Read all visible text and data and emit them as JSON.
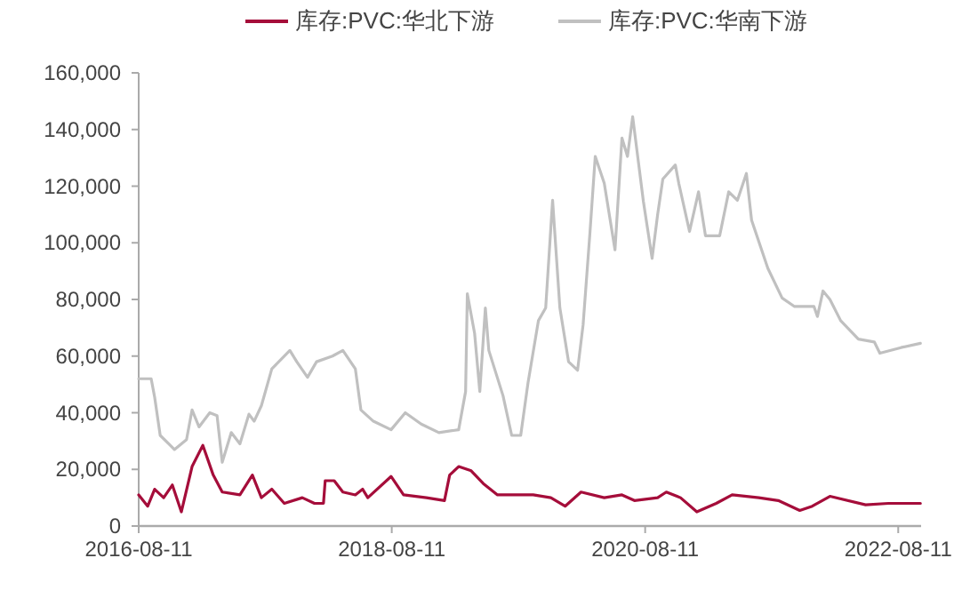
{
  "chart_data": {
    "type": "line",
    "legend": "top",
    "grid": false,
    "marker": "none",
    "line_style": "solid",
    "xlim": [
      "2016-08-11",
      "2022-10-16"
    ],
    "xticks": [
      "2016-08-11",
      "2018-08-11",
      "2020-08-11",
      "2022-08-11"
    ],
    "ylim": [
      0,
      160000
    ],
    "yticks": [
      0,
      {
        "value": 20000,
        "label": "20,000"
      },
      {
        "value": 40000,
        "label": "40,000"
      },
      {
        "value": 60000,
        "label": "60,000"
      },
      {
        "value": 80000,
        "label": "80,000"
      },
      {
        "value": 100000,
        "label": "100,000"
      },
      {
        "value": 120000,
        "label": "120,000"
      },
      {
        "value": 140000,
        "label": "140,000"
      },
      {
        "value": 160000,
        "label": "160,000"
      }
    ],
    "series": [
      {
        "name": "库存:PVC:华北下游",
        "color": "#a50d3a",
        "x": [
          "2016-08-11",
          "2016-09-06",
          "2016-09-26",
          "2016-10-22",
          "2016-11-16",
          "2016-12-12",
          "2017-01-12",
          "2017-02-12",
          "2017-03-14",
          "2017-04-09",
          "2017-05-30",
          "2017-07-05",
          "2017-07-31",
          "2017-08-30",
          "2017-10-05",
          "2017-11-26",
          "2017-12-31",
          "2018-01-26",
          "2018-01-31",
          "2018-02-26",
          "2018-03-23",
          "2018-04-28",
          "2018-05-19",
          "2018-06-03",
          "2018-08-09",
          "2018-09-14",
          "2018-11-19",
          "2019-01-10",
          "2019-01-25",
          "2019-02-20",
          "2019-03-28",
          "2019-05-02",
          "2019-06-12",
          "2019-08-03",
          "2019-09-23",
          "2019-11-13",
          "2019-12-24",
          "2020-02-08",
          "2020-04-15",
          "2020-06-05",
          "2020-07-11",
          "2020-09-16",
          "2020-10-11",
          "2020-11-21",
          "2021-01-07",
          "2021-03-04",
          "2021-04-19",
          "2021-07-05",
          "2021-08-30",
          "2021-10-31",
          "2021-12-06",
          "2022-01-26",
          "2022-05-09",
          "2022-07-14",
          "2022-10-14"
        ],
        "values": [
          11000,
          7000,
          13000,
          10000,
          14500,
          5000,
          21000,
          28500,
          18000,
          12000,
          11000,
          18000,
          10000,
          13000,
          8000,
          10000,
          8000,
          8000,
          16000,
          16000,
          12000,
          11000,
          13000,
          10000,
          17500,
          11000,
          10000,
          9000,
          18000,
          21000,
          19500,
          15000,
          11000,
          11000,
          11000,
          10000,
          7000,
          12000,
          10000,
          11000,
          9000,
          10000,
          12000,
          10000,
          5000,
          8000,
          11000,
          10000,
          9000,
          5500,
          7000,
          10500,
          7500,
          8000,
          8000
        ]
      },
      {
        "name": "库存:PVC:华南下游",
        "color": "#c0c0c0",
        "x": [
          "2016-08-11",
          "2016-09-16",
          "2016-09-26",
          "2016-10-12",
          "2016-11-06",
          "2016-11-22",
          "2016-12-27",
          "2017-01-12",
          "2017-02-01",
          "2017-03-04",
          "2017-03-25",
          "2017-04-09",
          "2017-05-05",
          "2017-05-30",
          "2017-06-25",
          "2017-07-10",
          "2017-07-31",
          "2017-08-30",
          "2017-10-21",
          "2017-11-10",
          "2017-12-11",
          "2018-01-06",
          "2018-02-21",
          "2018-03-23",
          "2018-04-28",
          "2018-05-14",
          "2018-06-19",
          "2018-08-09",
          "2018-09-19",
          "2018-11-04",
          "2018-12-25",
          "2019-02-20",
          "2019-03-12",
          "2019-03-17",
          "2019-04-07",
          "2019-04-22",
          "2019-05-08",
          "2019-05-18",
          "2019-06-28",
          "2019-07-23",
          "2019-08-18",
          "2019-09-08",
          "2019-10-08",
          "2019-10-29",
          "2019-11-18",
          "2019-12-09",
          "2020-01-03",
          "2020-01-29",
          "2020-02-14",
          "2020-03-05",
          "2020-03-20",
          "2020-04-15",
          "2020-05-16",
          "2020-06-05",
          "2020-06-21",
          "2020-07-06",
          "2020-08-06",
          "2020-08-31",
          "2020-09-16",
          "2020-10-01",
          "2020-11-06",
          "2020-11-16",
          "2020-12-17",
          "2021-01-12",
          "2021-02-01",
          "2021-03-14",
          "2021-04-09",
          "2021-05-04",
          "2021-05-30",
          "2021-06-14",
          "2021-07-31",
          "2021-09-10",
          "2021-10-16",
          "2021-12-11",
          "2021-12-21",
          "2022-01-06",
          "2022-01-26",
          "2022-02-26",
          "2022-04-18",
          "2022-06-03",
          "2022-06-19",
          "2022-08-19",
          "2022-10-14"
        ],
        "values": [
          52000,
          52000,
          45500,
          32000,
          29000,
          27000,
          30500,
          41000,
          35000,
          40000,
          39000,
          22500,
          33000,
          29000,
          39500,
          37000,
          42500,
          55500,
          62000,
          58000,
          52500,
          58000,
          60000,
          62000,
          55500,
          41000,
          37000,
          34000,
          40000,
          36000,
          33000,
          34000,
          47500,
          82000,
          68000,
          47500,
          77000,
          62000,
          46000,
          32000,
          32000,
          50500,
          72500,
          77000,
          115000,
          77000,
          58000,
          55000,
          71000,
          104000,
          130500,
          121000,
          97500,
          137000,
          130500,
          144500,
          114500,
          94500,
          110000,
          122500,
          127500,
          121000,
          104000,
          118000,
          102500,
          102500,
          118000,
          115000,
          124500,
          108000,
          91000,
          80500,
          77500,
          77500,
          74000,
          83000,
          80000,
          72500,
          66000,
          65000,
          61000,
          63000,
          64500
        ]
      }
    ]
  }
}
